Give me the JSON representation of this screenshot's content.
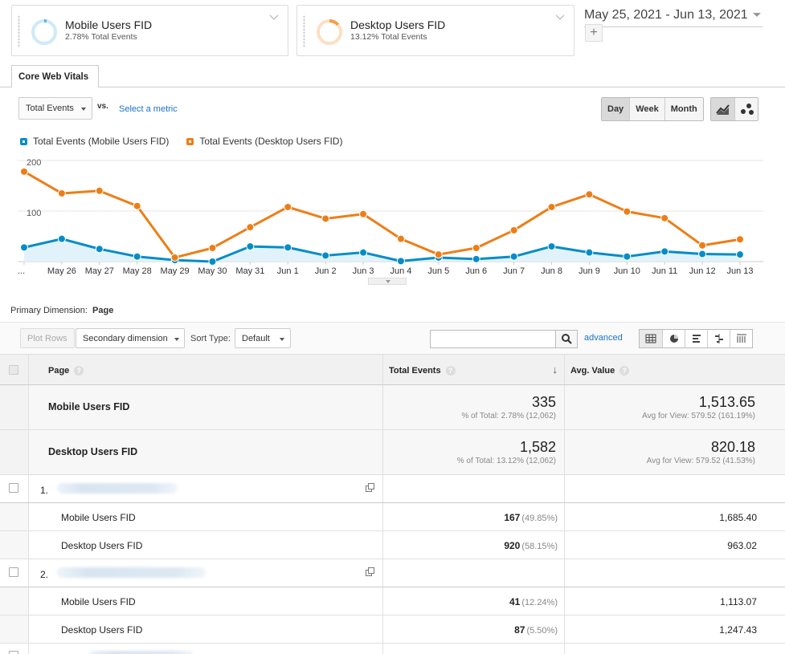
{
  "segments": [
    {
      "title": "Mobile Users FID",
      "subtitle": "2.78% Total Events",
      "color": "#5eb6e4"
    },
    {
      "title": "Desktop Users FID",
      "subtitle": "13.12% Total Events",
      "color": "#f5a044"
    }
  ],
  "date_range": "May 25, 2021 - Jun 13, 2021",
  "add_segment_label": "+",
  "tab_label": "Core Web Vitals",
  "metric_select": "Total Events",
  "vs_label": "vs.",
  "select_metric_label": "Select a metric",
  "period_buttons": [
    "Day",
    "Week",
    "Month"
  ],
  "period_selected": "Day",
  "legend": [
    {
      "label": "Total Events (Mobile Users FID)",
      "color": "#058dc7"
    },
    {
      "label": "Total Events (Desktop Users FID)",
      "color": "#ed7e17"
    }
  ],
  "chart_data": {
    "type": "line",
    "x": [
      "...",
      "May 26",
      "May 27",
      "May 28",
      "May 29",
      "May 30",
      "May 31",
      "Jun 1",
      "Jun 2",
      "Jun 3",
      "Jun 4",
      "Jun 5",
      "Jun 6",
      "Jun 7",
      "Jun 8",
      "Jun 9",
      "Jun 10",
      "Jun 11",
      "Jun 12",
      "Jun 13"
    ],
    "y_ticks": [
      100,
      200
    ],
    "ylim": [
      0,
      200
    ],
    "series": [
      {
        "name": "Total Events (Mobile Users FID)",
        "color": "#058dc7",
        "values": [
          28,
          45,
          25,
          10,
          3,
          0,
          30,
          28,
          12,
          18,
          1,
          8,
          5,
          10,
          30,
          18,
          10,
          20,
          15,
          14
        ]
      },
      {
        "name": "Total Events (Desktop Users FID)",
        "color": "#ed7e17",
        "values": [
          178,
          135,
          140,
          110,
          8,
          27,
          68,
          108,
          85,
          94,
          45,
          14,
          27,
          62,
          108,
          133,
          99,
          86,
          32,
          44
        ]
      }
    ]
  },
  "primary_dimension_label": "Primary Dimension:",
  "primary_dimension_value": "Page",
  "toolbar": {
    "plot_rows": "Plot Rows",
    "secondary_dimension": "Secondary dimension",
    "sort_type_label": "Sort Type:",
    "sort_default": "Default",
    "advanced": "advanced"
  },
  "table": {
    "headers": {
      "page": "Page",
      "events": "Total Events",
      "avg": "Avg. Value",
      "help": "?"
    },
    "segment_totals": [
      {
        "name": "Mobile Users FID",
        "events": "335",
        "events_sub": "% of Total: 2.78% (12,062)",
        "avg": "1,513.65",
        "avg_sub": "Avg for View: 579.52 (161.19%)"
      },
      {
        "name": "Desktop Users FID",
        "events": "1,582",
        "events_sub": "% of Total: 13.12% (12,062)",
        "avg": "820.18",
        "avg_sub": "Avg for View: 579.52 (41.53%)"
      }
    ],
    "rows": [
      {
        "index": "1.",
        "sub": [
          {
            "name": "Mobile Users FID",
            "events": "167",
            "pct": "(49.85%)",
            "avg": "1,685.40"
          },
          {
            "name": "Desktop Users FID",
            "events": "920",
            "pct": "(58.15%)",
            "avg": "963.02"
          }
        ]
      },
      {
        "index": "2.",
        "sub": [
          {
            "name": "Mobile Users FID",
            "events": "41",
            "pct": "(12.24%)",
            "avg": "1,113.07"
          },
          {
            "name": "Desktop Users FID",
            "events": "87",
            "pct": "(5.50%)",
            "avg": "1,247.43"
          }
        ]
      }
    ]
  }
}
